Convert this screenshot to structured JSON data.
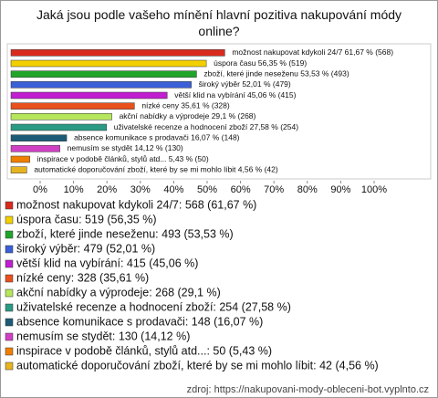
{
  "chart_data": {
    "type": "bar",
    "title": "Jaká jsou podle vašeho mínění hlavní pozitiva nakupování módy online?",
    "source": "zdroj: https://nakupovani-mody-obleceni-bot.vyplnto.cz",
    "values": [
      61.67,
      56.35,
      53.53,
      52.01,
      45.06,
      35.61,
      29.1,
      27.58,
      16.07,
      14.12,
      5.43,
      4.56
    ],
    "value_labels": [
      "možnost nakupovat kdykoli 24/7 61,67 % (568)",
      "úspora času 56,35 % (519)",
      "zboží, které jinde neseženu 53,53 % (493)",
      "široký výběr 52,01 % (479)",
      "větší klid na vybírání 45,06 % (415)",
      "nízké ceny 35,61 % (328)",
      "akční nabídky a výprodeje 29,1 % (268)",
      "uživatelské recenze a hodnocení zboží 27,58 % (254)",
      "absence komunikace s prodavači 16,07 % (148)",
      "nemusím se stydět 14,12 % (130)",
      "inspirace v podobě článků, stylů atd... 5,43 % (50)",
      "automatické doporučování zboží, které by se mi mohlo líbit 4,56 % (42)"
    ],
    "legend_labels": [
      "možnost nakupovat kdykoli 24/7: 568 (61,67 %)",
      "úspora času: 519 (56,35 %)",
      "zboží, které jinde neseženu: 493 (53,53 %)",
      "široký výběr: 479 (52,01 %)",
      "větší klid na vybírání: 415 (45,06 %)",
      "nízké ceny: 328 (35,61 %)",
      "akční nabídky a výprodeje: 268 (29,1 %)",
      "uživatelské recenze a hodnocení zboží: 254 (27,58 %)",
      "absence komunikace s prodavači: 148 (16,07 %)",
      "nemusím se stydět: 130 (14,12 %)",
      "inspirace v podobě článků, stylů atd...: 50 (5,43 %)",
      "automatické doporučování zboží, které by se mi mohlo líbit: 42 (4,56 %)"
    ],
    "colors": [
      "#d92a1e",
      "#f2d000",
      "#1fa52a",
      "#3b5fd6",
      "#c01ed0",
      "#e8501c",
      "#b6e65c",
      "#2a9a84",
      "#1b5b78",
      "#d040c4",
      "#f07f00",
      "#e6b420"
    ],
    "xlim": [
      0,
      100
    ],
    "xticks": [
      {
        "value": 0,
        "label": "0%"
      },
      {
        "value": 10,
        "label": "10%"
      },
      {
        "value": 20,
        "label": "20%"
      },
      {
        "value": 30,
        "label": "30%"
      },
      {
        "value": 40,
        "label": "40%"
      },
      {
        "value": 50,
        "label": "50%"
      },
      {
        "value": 60,
        "label": "60%"
      },
      {
        "value": 70,
        "label": "70%"
      },
      {
        "value": 80,
        "label": "80%"
      },
      {
        "value": 90,
        "label": "90%"
      },
      {
        "value": 100,
        "label": "100%"
      }
    ]
  }
}
